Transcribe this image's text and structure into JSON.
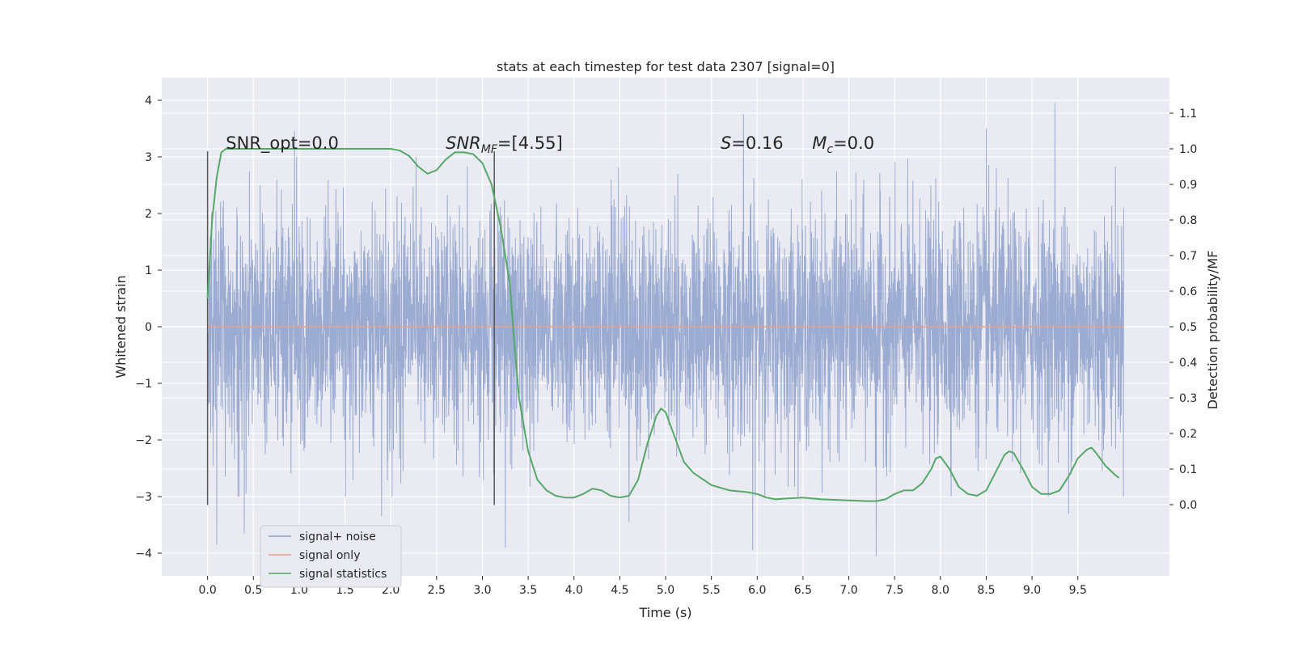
{
  "chart_data": {
    "type": "line",
    "title": "stats at each timestep for test data 2307 [signal=0]",
    "xlabel": "Time (s)",
    "ylabel": "Whitened strain",
    "ylabel_right": "Detection probability/MF",
    "xlim": [
      -0.5,
      10.5
    ],
    "ylim": [
      -4.4,
      4.4
    ],
    "ylim_right": [
      -0.2,
      1.2
    ],
    "x_ticks": [
      0.0,
      0.5,
      1.0,
      1.5,
      2.0,
      2.5,
      3.0,
      3.5,
      4.0,
      4.5,
      5.0,
      5.5,
      6.0,
      6.5,
      7.0,
      7.5,
      8.0,
      8.5,
      9.0,
      9.5
    ],
    "x_tick_labels": [
      "0.0",
      "0.5",
      "1.0",
      "1.5",
      "2.0",
      "2.5",
      "3.0",
      "3.5",
      "4.0",
      "4.5",
      "5.0",
      "5.5",
      "6.0",
      "6.5",
      "7.0",
      "7.5",
      "8.0",
      "8.5",
      "9.0",
      "9.5"
    ],
    "y_ticks": [
      -4,
      -3,
      -2,
      -1,
      0,
      1,
      2,
      3,
      4
    ],
    "y_tick_labels": [
      "−4",
      "−3",
      "−2",
      "−1",
      "0",
      "1",
      "2",
      "3",
      "4"
    ],
    "y_right_ticks": [
      0.0,
      0.1,
      0.2,
      0.3,
      0.4,
      0.5,
      0.6,
      0.7,
      0.8,
      0.9,
      1.0,
      1.1
    ],
    "y_right_tick_labels": [
      "0.0",
      "0.1",
      "0.2",
      "0.3",
      "0.4",
      "0.5",
      "0.6",
      "0.7",
      "0.8",
      "0.9",
      "1.0",
      "1.1"
    ],
    "grid": true,
    "legend_position": "lower-left",
    "legend": [
      "signal+ noise",
      "signal only",
      "signal statistics"
    ],
    "annotations": [
      {
        "text": "SNR_opt=0.0",
        "x": 0.2
      },
      {
        "text_main": "SNR",
        "text_sub": "MF",
        "text_rest": "=[4.55]",
        "x": 2.6
      },
      {
        "text_main": "S",
        "text_rest": "=0.16",
        "x": 5.6
      },
      {
        "text_main": "M",
        "text_sub": "c",
        "text_rest": "=0.0",
        "x": 6.6
      }
    ],
    "vlines": [
      {
        "x": 0.0,
        "ymin": -3.15,
        "ymax": 3.1
      },
      {
        "x": 3.13,
        "ymin": -3.15,
        "ymax": 3.1
      }
    ],
    "series": [
      {
        "name": "signal+ noise",
        "color": "#8da0cb",
        "axis": "left",
        "x_range": [
          0.0,
          10.0
        ],
        "sample_count": 4096,
        "typical_range": [
          -2.5,
          2.5
        ],
        "extremes": [
          {
            "x": 0.1,
            "y": -3.85
          },
          {
            "x": 0.4,
            "y": -3.65
          },
          {
            "x": 0.95,
            "y": 3.45
          },
          {
            "x": 1.9,
            "y": -3.35
          },
          {
            "x": 3.25,
            "y": -3.9
          },
          {
            "x": 5.85,
            "y": 3.75
          },
          {
            "x": 5.95,
            "y": -3.95
          },
          {
            "x": 7.3,
            "y": -4.05
          },
          {
            "x": 9.25,
            "y": 3.95
          },
          {
            "x": 8.5,
            "y": 3.5
          },
          {
            "x": 4.6,
            "y": -3.45
          },
          {
            "x": 9.4,
            "y": -3.3
          }
        ]
      },
      {
        "name": "signal only",
        "color": "#e8a089",
        "axis": "left",
        "x": [
          0.0,
          10.0
        ],
        "y": [
          0.0,
          0.0
        ]
      },
      {
        "name": "signal statistics",
        "color": "#55a868",
        "axis": "right",
        "x": [
          0.0,
          0.05,
          0.1,
          0.15,
          0.2,
          0.4,
          1.0,
          1.5,
          2.0,
          2.1,
          2.2,
          2.3,
          2.4,
          2.5,
          2.6,
          2.7,
          2.8,
          2.9,
          3.0,
          3.1,
          3.2,
          3.3,
          3.35,
          3.4,
          3.5,
          3.6,
          3.7,
          3.8,
          3.9,
          4.0,
          4.1,
          4.2,
          4.3,
          4.4,
          4.5,
          4.6,
          4.7,
          4.8,
          4.9,
          4.95,
          5.0,
          5.1,
          5.2,
          5.3,
          5.5,
          5.7,
          5.9,
          6.0,
          6.1,
          6.2,
          6.3,
          6.5,
          6.7,
          7.0,
          7.2,
          7.3,
          7.4,
          7.5,
          7.6,
          7.7,
          7.8,
          7.9,
          7.95,
          8.0,
          8.1,
          8.2,
          8.3,
          8.4,
          8.5,
          8.6,
          8.7,
          8.75,
          8.8,
          8.9,
          9.0,
          9.1,
          9.2,
          9.3,
          9.4,
          9.5,
          9.6,
          9.65,
          9.7,
          9.8,
          9.9,
          9.95
        ],
        "y": [
          0.58,
          0.8,
          0.92,
          0.99,
          1.0,
          1.0,
          1.0,
          1.0,
          1.0,
          0.995,
          0.98,
          0.95,
          0.93,
          0.94,
          0.97,
          0.99,
          0.99,
          0.985,
          0.96,
          0.9,
          0.78,
          0.62,
          0.45,
          0.3,
          0.15,
          0.07,
          0.04,
          0.025,
          0.02,
          0.02,
          0.03,
          0.045,
          0.04,
          0.025,
          0.02,
          0.025,
          0.07,
          0.17,
          0.25,
          0.27,
          0.26,
          0.19,
          0.12,
          0.09,
          0.055,
          0.04,
          0.035,
          0.03,
          0.02,
          0.015,
          0.017,
          0.02,
          0.015,
          0.012,
          0.01,
          0.01,
          0.015,
          0.03,
          0.04,
          0.04,
          0.06,
          0.1,
          0.13,
          0.135,
          0.1,
          0.05,
          0.03,
          0.025,
          0.04,
          0.09,
          0.14,
          0.15,
          0.145,
          0.1,
          0.05,
          0.03,
          0.03,
          0.04,
          0.08,
          0.13,
          0.155,
          0.16,
          0.145,
          0.11,
          0.085,
          0.075
        ]
      }
    ]
  }
}
